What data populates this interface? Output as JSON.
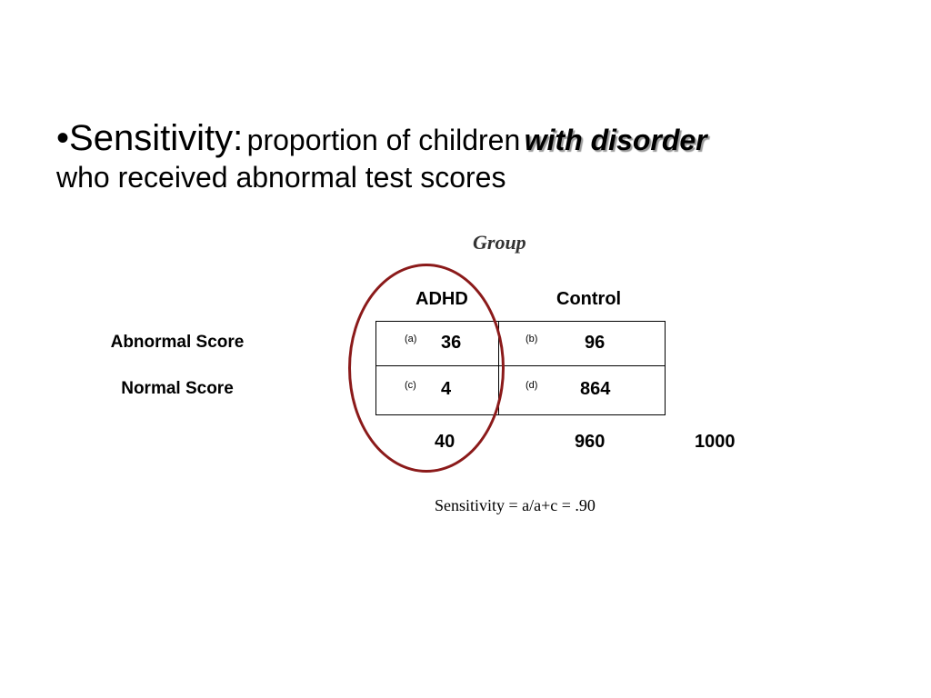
{
  "heading": {
    "bullet": "•",
    "term": "Sensitivity:",
    "definition_part1": "proportion of children",
    "emphasis": "with disorder",
    "definition_part2": "who received abnormal test scores"
  },
  "table": {
    "group_title": "Group",
    "columns": [
      "ADHD",
      "Control"
    ],
    "rows": [
      {
        "label": "Abnormal Score",
        "cells": [
          {
            "tag": "(a)",
            "value": "36"
          },
          {
            "tag": "(b)",
            "value": "96"
          }
        ]
      },
      {
        "label": "Normal Score",
        "cells": [
          {
            "tag": "(c)",
            "value": "4"
          },
          {
            "tag": "(d)",
            "value": "864"
          }
        ]
      }
    ],
    "totals": [
      "40",
      "960",
      "1000"
    ],
    "highlight_color": "#8b1a1a"
  },
  "formula": "Sensitivity = a/a+c = .90"
}
